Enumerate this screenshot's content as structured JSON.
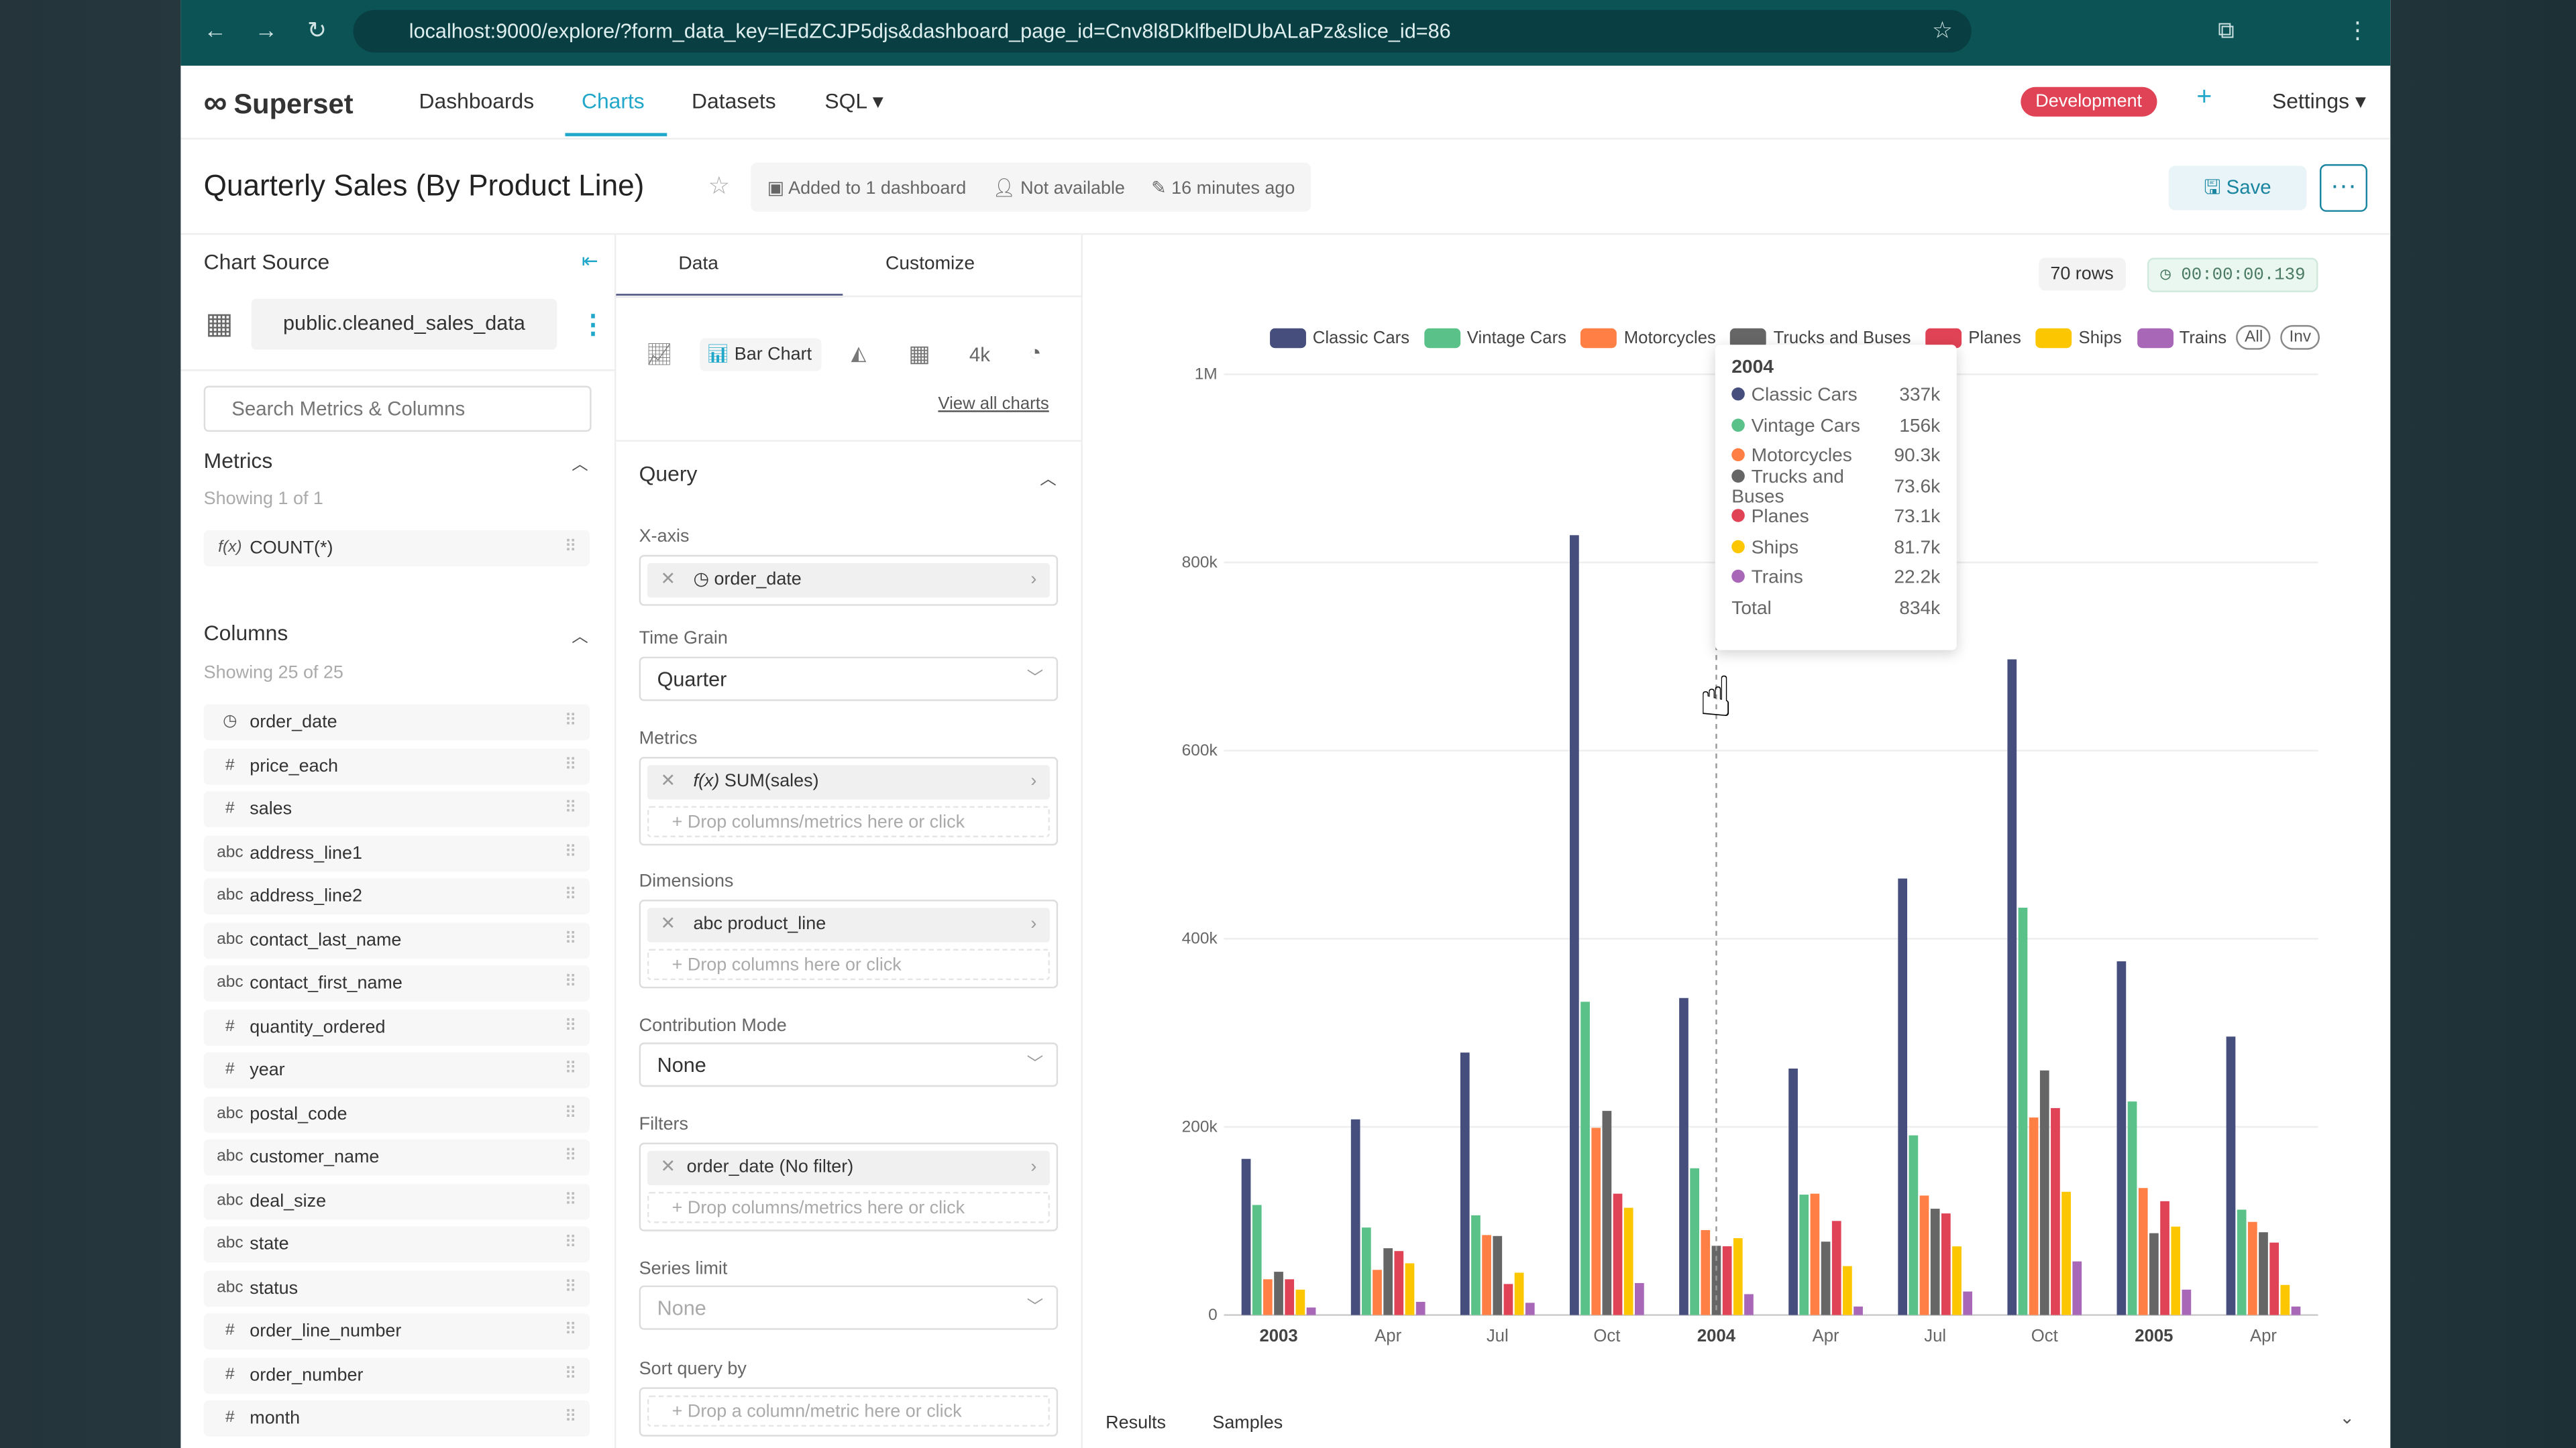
{
  "browser": {
    "url": "localhost:9000/explore/?form_data_key=lEdZCJP5djs&dashboard_page_id=Cnv8l8DklfbelDUbALaPz&slice_id=86"
  },
  "nav": {
    "brand": "Superset",
    "items": [
      "Dashboards",
      "Charts",
      "Datasets",
      "SQL"
    ],
    "active": "Charts",
    "env_badge": "Development",
    "plus": "+",
    "settings": "Settings"
  },
  "header": {
    "title": "Quarterly Sales (By Product Line)",
    "added": "Added to 1 dashboard",
    "owner": "Not available",
    "modified": "16 minutes ago",
    "save": "Save",
    "more": "···"
  },
  "source": {
    "heading": "Chart Source",
    "dataset": "public.cleaned_sales_data",
    "search_placeholder": "Search Metrics & Columns",
    "metrics_heading": "Metrics",
    "metrics_count": "Showing 1 of 1",
    "metrics": [
      {
        "type": "f(x)",
        "name": "COUNT(*)"
      }
    ],
    "columns_heading": "Columns",
    "columns_count": "Showing 25 of 25",
    "columns": [
      {
        "type": "clock",
        "name": "order_date"
      },
      {
        "type": "#",
        "name": "price_each"
      },
      {
        "type": "#",
        "name": "sales"
      },
      {
        "type": "abc",
        "name": "address_line1"
      },
      {
        "type": "abc",
        "name": "address_line2"
      },
      {
        "type": "abc",
        "name": "contact_last_name"
      },
      {
        "type": "abc",
        "name": "contact_first_name"
      },
      {
        "type": "#",
        "name": "quantity_ordered"
      },
      {
        "type": "#",
        "name": "year"
      },
      {
        "type": "abc",
        "name": "postal_code"
      },
      {
        "type": "abc",
        "name": "customer_name"
      },
      {
        "type": "abc",
        "name": "deal_size"
      },
      {
        "type": "abc",
        "name": "state"
      },
      {
        "type": "abc",
        "name": "status"
      },
      {
        "type": "#",
        "name": "order_line_number"
      },
      {
        "type": "#",
        "name": "order_number"
      },
      {
        "type": "#",
        "name": "month"
      }
    ]
  },
  "config": {
    "tabs": [
      "Data",
      "Customize"
    ],
    "chart_type": "Bar Chart",
    "big_number": "4k",
    "view_all": "View all charts",
    "query": "Query",
    "xaxis_label": "X-axis",
    "xaxis": "order_date",
    "time_grain_label": "Time Grain",
    "time_grain": "Quarter",
    "metrics_label": "Metrics",
    "metric": "SUM(sales)",
    "fx": "f(x)",
    "drop_metrics": "Drop columns/metrics here or click",
    "dimensions_label": "Dimensions",
    "dimension": "product_line",
    "abc": "abc",
    "drop_columns": "Drop columns here or click",
    "contribution_label": "Contribution Mode",
    "contribution": "None",
    "filters_label": "Filters",
    "filter": "order_date (No filter)",
    "series_limit_label": "Series limit",
    "series_limit": "None",
    "sort_label": "Sort query by",
    "drop_sort": "Drop a column/metric here or click"
  },
  "result": {
    "rows": "70 rows",
    "duration": "00:00:00.139",
    "tabs": [
      "Results",
      "Samples"
    ]
  },
  "legend_buttons": [
    "All",
    "Inv"
  ],
  "tooltip": {
    "title": "2004",
    "rows": [
      [
        "Classic Cars",
        "337k"
      ],
      [
        "Vintage Cars",
        "156k"
      ],
      [
        "Motorcycles",
        "90.3k"
      ],
      [
        "Trucks and Buses",
        "73.6k"
      ],
      [
        "Planes",
        "73.1k"
      ],
      [
        "Ships",
        "81.7k"
      ],
      [
        "Trains",
        "22.2k"
      ]
    ],
    "total_label": "Total",
    "total": "834k"
  },
  "chart_data": {
    "type": "bar",
    "categories": [
      "2003-Q1",
      "2003-Q2",
      "2003-Q3",
      "2003-Q4",
      "2004-Q1",
      "2004-Q2",
      "2004-Q3",
      "2004-Q4",
      "2005-Q1",
      "2005-Q2"
    ],
    "tick_labels": [
      "2003",
      "Apr",
      "Jul",
      "Oct",
      "2004",
      "Apr",
      "Jul",
      "Oct",
      "2005",
      "Apr"
    ],
    "ylim": [
      0,
      1000000
    ],
    "yticks": [
      "0",
      "200k",
      "400k",
      "600k",
      "800k",
      "1M"
    ],
    "grid": true,
    "legend_placement": "top",
    "series": [
      {
        "name": "Classic Cars",
        "color": "#454e7c",
        "values": [
          166000,
          208000,
          279000,
          829000,
          337000,
          262000,
          464000,
          697000,
          376000,
          296000
        ]
      },
      {
        "name": "Vintage Cars",
        "color": "#5ac189",
        "values": [
          117000,
          93000,
          106000,
          333000,
          156000,
          128000,
          191000,
          433000,
          227000,
          112000
        ]
      },
      {
        "name": "Motorcycles",
        "color": "#ff7f44",
        "values": [
          38000,
          48000,
          85000,
          199000,
          90300,
          129000,
          127000,
          210000,
          135000,
          99000
        ]
      },
      {
        "name": "Trucks and Buses",
        "color": "#666666",
        "values": [
          46000,
          71000,
          84000,
          217000,
          73600,
          78000,
          113000,
          260000,
          87000,
          88000
        ]
      },
      {
        "name": "Planes",
        "color": "#e04355",
        "values": [
          38000,
          68000,
          33000,
          129000,
          73100,
          100000,
          108000,
          220000,
          121000,
          77000
        ]
      },
      {
        "name": "Ships",
        "color": "#fcc700",
        "values": [
          27000,
          55000,
          45000,
          114000,
          81700,
          52000,
          73000,
          131000,
          94000,
          32000
        ]
      },
      {
        "name": "Trains",
        "color": "#a868b7",
        "values": [
          8000,
          14000,
          13000,
          34000,
          22200,
          9000,
          25000,
          57000,
          27000,
          9000
        ]
      }
    ]
  }
}
